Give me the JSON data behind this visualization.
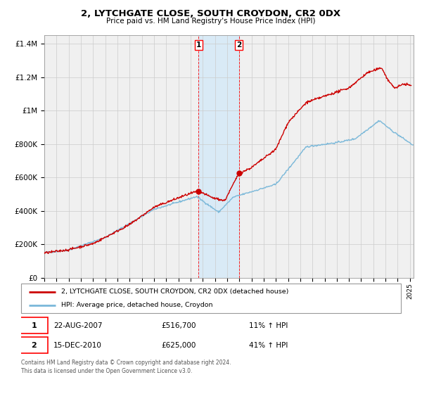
{
  "title": "2, LYTCHGATE CLOSE, SOUTH CROYDON, CR2 0DX",
  "subtitle": "Price paid vs. HM Land Registry's House Price Index (HPI)",
  "legend_entry1": "2, LYTCHGATE CLOSE, SOUTH CROYDON, CR2 0DX (detached house)",
  "legend_entry2": "HPI: Average price, detached house, Croydon",
  "transaction1_date": "22-AUG-2007",
  "transaction1_price": "£516,700",
  "transaction1_hpi": "11% ↑ HPI",
  "transaction2_date": "15-DEC-2010",
  "transaction2_price": "£625,000",
  "transaction2_hpi": "41% ↑ HPI",
  "footer": "Contains HM Land Registry data © Crown copyright and database right 2024.\nThis data is licensed under the Open Government Licence v3.0.",
  "transaction1_x": 2007.647,
  "transaction1_y": 516700,
  "transaction2_x": 2010.958,
  "transaction2_y": 625000,
  "hpi_color": "#7ab8d9",
  "price_color": "#cc0000",
  "marker_color": "#cc0000",
  "shade_color": "#d6eaf8",
  "grid_color": "#cccccc",
  "background_color": "#f0f0f0",
  "ylim": [
    0,
    1450000
  ],
  "xlim_start": 1995.0,
  "xlim_end": 2025.3
}
